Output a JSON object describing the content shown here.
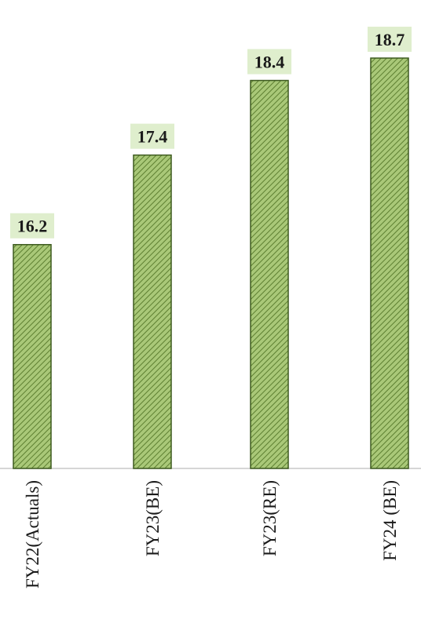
{
  "chart_data": {
    "type": "bar",
    "categories": [
      "FY22(Actuals)",
      "FY23(BE)",
      "FY23(RE)",
      "FY24 (BE)"
    ],
    "values": [
      16.2,
      17.4,
      18.4,
      18.7
    ],
    "value_labels": [
      "16.2",
      "17.4",
      "18.4",
      "18.7"
    ],
    "title": "",
    "xlabel": "",
    "ylabel": "",
    "ylim": [
      13.2,
      18.9
    ],
    "grid": false,
    "legend": "none",
    "colors": {
      "bar_fill": "#a9c878",
      "bar_hatch": "#5d7f31",
      "bar_edge": "#3d5a1f",
      "label_bg": "#dfeecd"
    }
  }
}
